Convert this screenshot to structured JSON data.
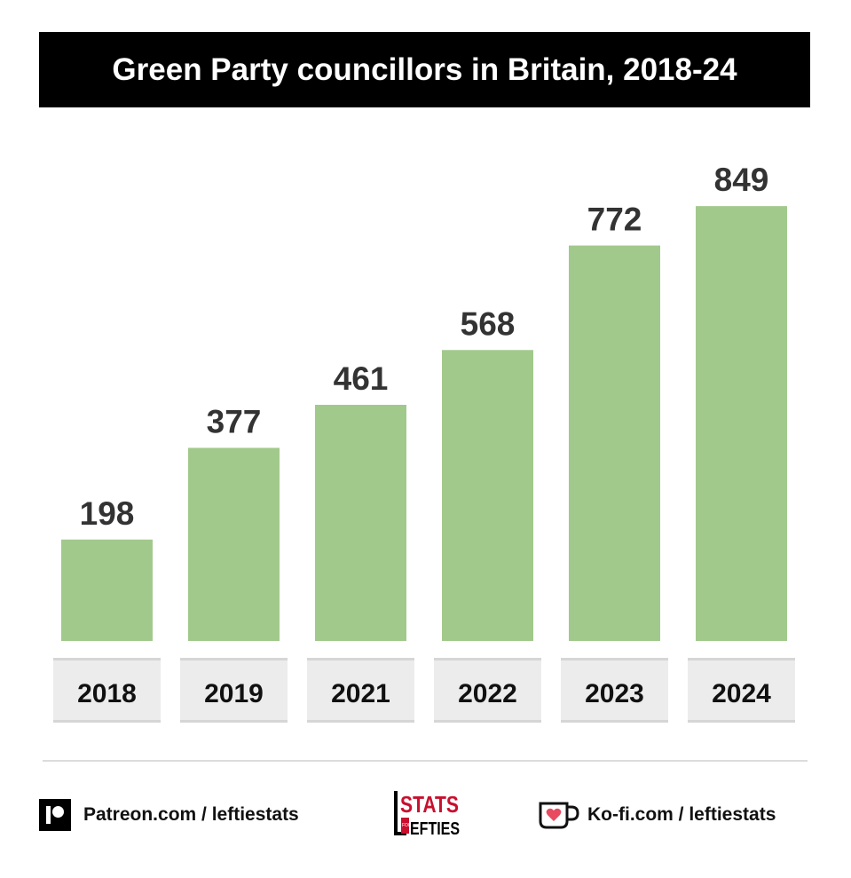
{
  "title": "Green Party councillors in Britain, 2018-24",
  "chart_data": {
    "type": "bar",
    "title": "Green Party councillors in Britain, 2018-24",
    "categories": [
      "2018",
      "2019",
      "2021",
      "2022",
      "2023",
      "2024"
    ],
    "values": [
      198,
      377,
      461,
      568,
      772,
      849
    ],
    "xlabel": "",
    "ylabel": "",
    "ylim": [
      0,
      1000
    ],
    "grid": false,
    "legend": "none",
    "bar_color": "#a2c98c",
    "label_bg_color": "#ececec"
  },
  "footer": {
    "patreon_text": "Patreon.com / leftiestats",
    "kofi_text": "Ko-fi.com / leftiestats",
    "logo_text": "STATS FOR LEFTIES",
    "patreon_icon": "patreon-icon",
    "kofi_icon": "kofi-cup-icon",
    "logo_icon": "stats-for-lefties-logo"
  },
  "colors": {
    "title_bg": "#000000",
    "title_fg": "#ffffff",
    "logo_red": "#c8102e"
  }
}
